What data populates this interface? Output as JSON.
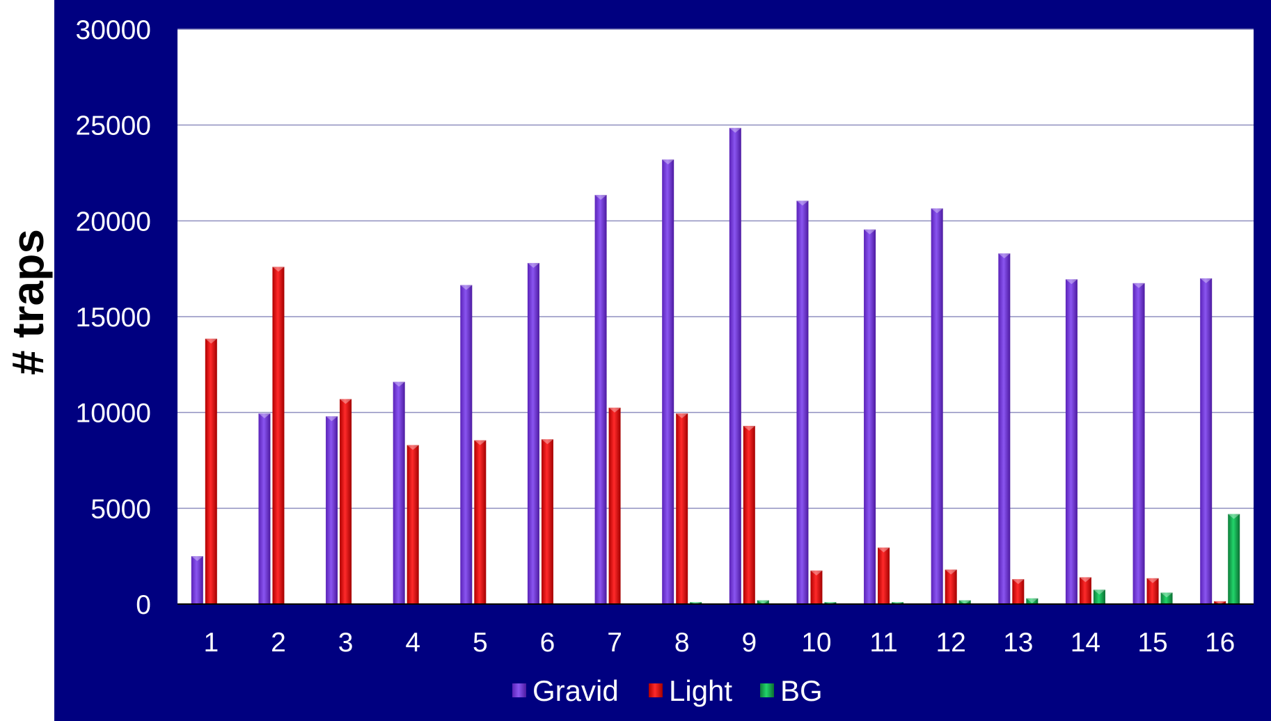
{
  "chart_data": {
    "type": "bar",
    "title": "",
    "xlabel": "",
    "ylabel": "# traps",
    "ylim": [
      0,
      30000
    ],
    "yticks": [
      0,
      5000,
      10000,
      15000,
      20000,
      25000,
      30000
    ],
    "grid": true,
    "legend_position": "bottom",
    "categories": [
      "1",
      "2",
      "3",
      "4",
      "5",
      "6",
      "7",
      "8",
      "9",
      "10",
      "11",
      "12",
      "13",
      "14",
      "15",
      "16"
    ],
    "series": [
      {
        "name": "Gravid",
        "color": "#7b3fe0",
        "values": [
          2500,
          9950,
          9800,
          11600,
          16650,
          17800,
          21350,
          23200,
          24850,
          21050,
          19550,
          20650,
          18300,
          16950,
          16750,
          17000
        ]
      },
      {
        "name": "Light",
        "color": "#ee1111",
        "values": [
          13850,
          17600,
          10700,
          8300,
          8550,
          8600,
          10250,
          9950,
          9300,
          1750,
          2950,
          1800,
          1300,
          1400,
          1350,
          150
        ]
      },
      {
        "name": "BG",
        "color": "#17b85a",
        "values": [
          0,
          0,
          0,
          0,
          0,
          0,
          0,
          100,
          200,
          100,
          100,
          200,
          300,
          750,
          600,
          4700
        ]
      }
    ]
  }
}
